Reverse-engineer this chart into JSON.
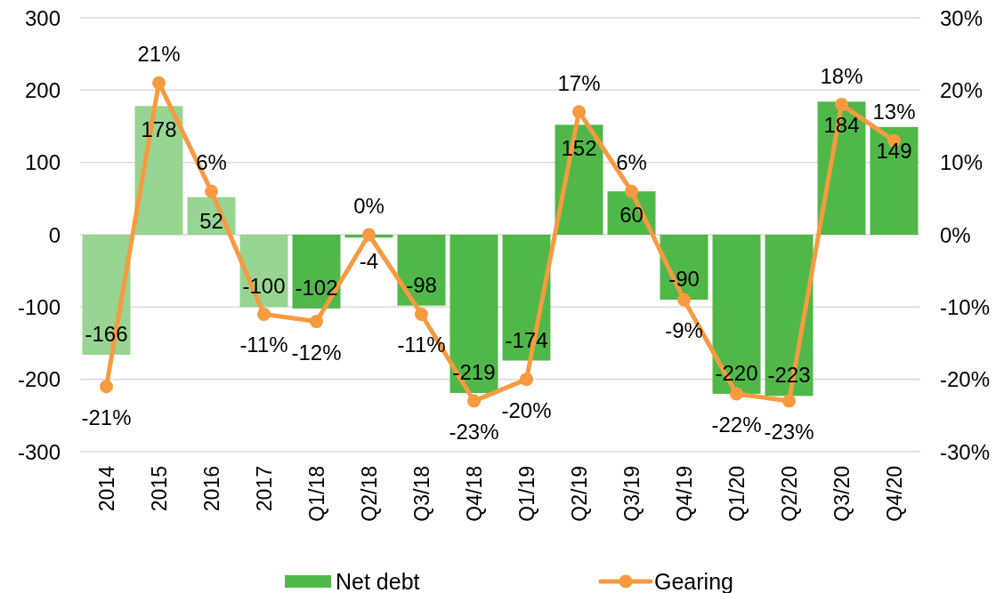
{
  "chart_data": {
    "type": "bar",
    "categories": [
      "2014",
      "2015",
      "2016",
      "2017",
      "Q1/18",
      "Q2/18",
      "Q3/18",
      "Q4/18",
      "Q1/19",
      "Q2/19",
      "Q3/19",
      "Q4/19",
      "Q1/20",
      "Q2/20",
      "Q3/20",
      "Q4/20"
    ],
    "series": [
      {
        "name": "Net debt",
        "color": "#50b848",
        "colors": [
          "#98d492",
          "#98d492",
          "#98d492",
          "#98d492",
          "#50b848",
          "#50b848",
          "#50b848",
          "#50b848",
          "#50b848",
          "#50b848",
          "#50b848",
          "#50b848",
          "#50b848",
          "#50b848",
          "#50b848",
          "#50b848"
        ],
        "values": [
          -166,
          178,
          52,
          -100,
          -102,
          -4,
          -98,
          -219,
          -174,
          152,
          60,
          -90,
          -220,
          -223,
          184,
          149
        ],
        "value_labels": [
          "-166",
          "178",
          "52",
          "-100",
          "-102",
          "-4",
          "-98",
          "-219",
          "-174",
          "152",
          "60",
          "-90",
          "-220",
          "-223",
          "184",
          "149"
        ]
      },
      {
        "name": "Gearing",
        "type": "line",
        "axis": "y2",
        "color": "#f79a40",
        "marker": "circle",
        "values": [
          -21,
          21,
          6,
          -11,
          -12,
          0,
          -11,
          -23,
          -20,
          17,
          6,
          -9,
          -22,
          -23,
          18,
          13
        ],
        "value_labels": [
          "-21%",
          "21%",
          "6%",
          "-11%",
          "-12%",
          "0%",
          "-11%",
          "-23%",
          "-20%",
          "17%",
          "6%",
          "-9%",
          "-22%",
          "-23%",
          "18%",
          "13%"
        ]
      }
    ],
    "ylim": [
      -300,
      300
    ],
    "yticks": [
      -300,
      -200,
      -100,
      0,
      100,
      200,
      300
    ],
    "y2lim": [
      -30,
      30
    ],
    "y2ticks": [
      {
        "value": -30,
        "label": "-30%"
      },
      {
        "value": -20,
        "label": "-20%"
      },
      {
        "value": -10,
        "label": "-10%"
      },
      {
        "value": 0,
        "label": "0%"
      },
      {
        "value": 10,
        "label": "10%"
      },
      {
        "value": 20,
        "label": "20%"
      },
      {
        "value": 30,
        "label": "30%"
      }
    ],
    "grid": "y",
    "legend": "bottom"
  }
}
